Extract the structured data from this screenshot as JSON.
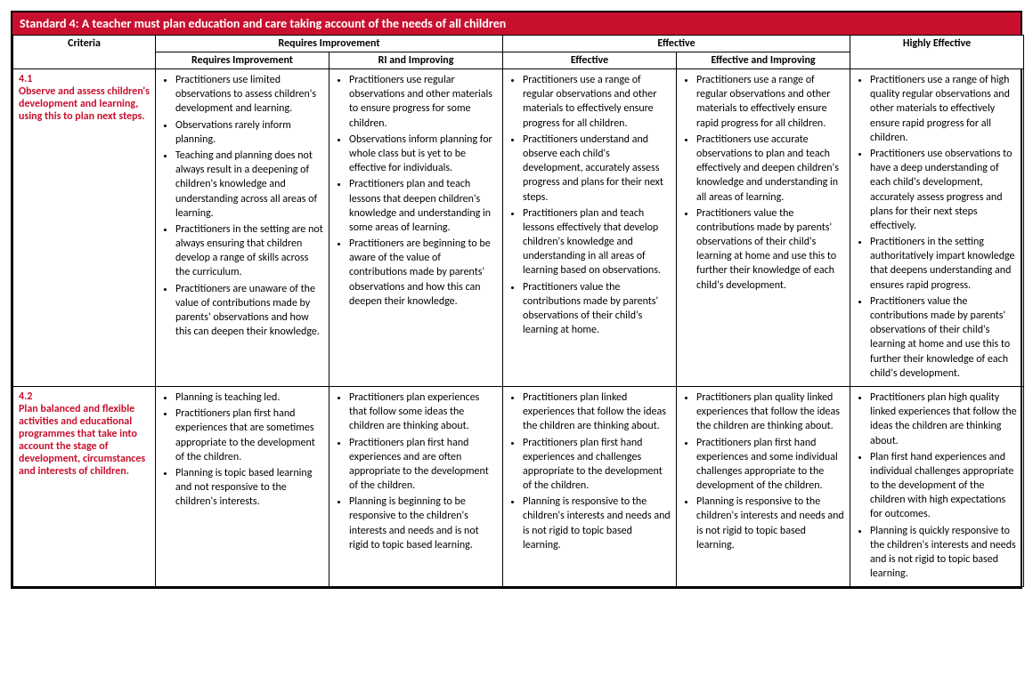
{
  "title": "Standard 4: A teacher must plan education and care taking account of the needs of all children",
  "headers": {
    "criteria": "Criteria",
    "group_ri": "Requires Improvement",
    "group_eff": "Effective",
    "highly": "Highly Effective",
    "sub_ri": "Requires Improvement",
    "sub_ri_imp": "RI and Improving",
    "sub_eff": "Effective",
    "sub_eff_imp": "Effective and Improving"
  },
  "rows": [
    {
      "criteria_num": "4.1",
      "criteria_text": "Observe and assess children's development and learning, using this to plan next steps.",
      "cols": {
        "ri": [
          "Practitioners use limited observations to assess children's development and learning.",
          "Observations rarely inform planning.",
          "Teaching and planning does not always result in a deepening of children's knowledge and understanding across all areas of learning.",
          "Practitioners in the setting are not always ensuring that children develop a range of skills across the curriculum.",
          "Practitioners are unaware of the value of contributions made by parents' observations and how this can deepen their knowledge."
        ],
        "ri_imp": [
          "Practitioners use regular observations and other materials to ensure progress for some children.",
          "Observations inform planning for whole class but is yet to be effective for individuals.",
          "Practitioners plan and teach lessons that deepen children's knowledge and understanding in some areas of learning.",
          "Practitioners are beginning to be aware of the value of contributions made by parents' observations and how this can deepen their knowledge."
        ],
        "eff": [
          "Practitioners use a range of regular observations and other materials to effectively ensure progress for all children.",
          "Practitioners understand and observe each child's development, accurately assess progress and plans for their next steps.",
          "Practitioners plan and teach lessons effectively that develop children's knowledge and understanding in all areas of learning based on observations.",
          "Practitioners value the contributions made by parents' observations of their child's learning at home."
        ],
        "eff_imp": [
          "Practitioners use a  range of regular observations  and other materials to effectively ensure rapid progress for all children.",
          "Practitioners use accurate observations to plan and teach effectively and deepen children's knowledge and understanding in all areas of learning.",
          "Practitioners value the contributions made by parents' observations of their child's learning at home and use this to further their knowledge of each child's development."
        ],
        "highly": [
          "Practitioners use a range of high quality regular observations and other materials to effectively ensure rapid progress for all children.",
          "Practitioners use observations to have a deep understanding of each child's development, accurately assess progress and plans for their next steps effectively.",
          "Practitioners in the setting authoritatively impart knowledge that deepens understanding and ensures rapid progress.",
          "Practitioners value the contributions made by parents' observations of their child's learning at home and use this to further their knowledge of each child's development."
        ]
      }
    },
    {
      "criteria_num": "4.2",
      "criteria_text": "Plan balanced and flexible activities and educational programmes that take into account the stage of development, circumstances and interests of children.",
      "cols": {
        "ri": [
          "Planning is teaching led.",
          "Practitioners plan first hand experiences that are sometimes appropriate to the development of the children.",
          "Planning is topic based learning and not responsive to the children's interests."
        ],
        "ri_imp": [
          "Practitioners plan experiences that follow some ideas the children are thinking about.",
          "Practitioners plan first hand experiences and are often appropriate to the development of the children.",
          "Planning is beginning to be responsive to the children's interests and needs and is not rigid to topic based learning."
        ],
        "eff": [
          "Practitioners plan linked experiences that follow the ideas the children are thinking about.",
          "Practitioners plan first hand experiences and challenges appropriate to the development of the children.",
          "Planning is responsive to the children's interests and needs and is not rigid to topic based learning."
        ],
        "eff_imp": [
          "Practitioners plan quality linked experiences that follow the ideas the children are thinking about.",
          "Practitioners plan first hand experiences and some individual challenges appropriate to the development of the children.",
          "Planning is responsive to the children's interests and needs and is not rigid to topic based learning."
        ],
        "highly": [
          "Practitioners plan high quality linked experiences that follow the ideas the children are thinking about.",
          "Plan first hand experiences and individual challenges appropriate to the development of the children with high expectations for outcomes.",
          "Planning is quickly responsive to the children's interests and needs and is not rigid to topic based learning."
        ]
      }
    }
  ]
}
